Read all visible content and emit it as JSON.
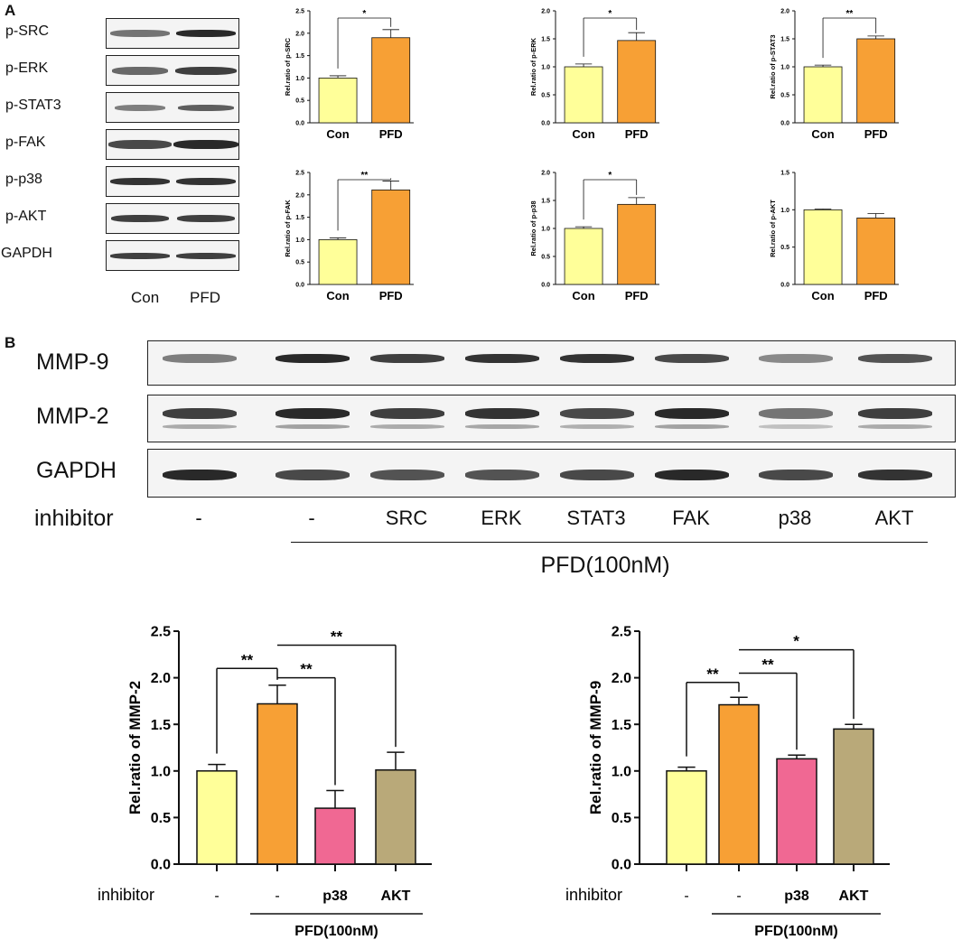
{
  "panel_labels": {
    "a": "A",
    "b": "B"
  },
  "panelA": {
    "blot_rows": [
      "p-SRC",
      "p-ERK",
      "p-STAT3",
      "p-FAK",
      "p-p38",
      "p-AKT",
      "GAPDH"
    ],
    "lanes": [
      "Con",
      "PFD"
    ]
  },
  "panelB": {
    "blot_rows": [
      "MMP-9",
      "MMP-2",
      "GAPDH"
    ],
    "inhibitor_label": "inhibitor",
    "lanes": [
      "-",
      "-",
      "SRC",
      "ERK",
      "STAT3",
      "FAK",
      "p38",
      "AKT"
    ],
    "treatment_label": "PFD(100nM)"
  },
  "colors": {
    "con": "#ffff99",
    "pfd": "#f7a035",
    "p38": "#f06893",
    "akt": "#b9a979"
  },
  "chart_data": [
    {
      "type": "bar",
      "id": "p-SRC",
      "categories": [
        "Con",
        "PFD"
      ],
      "values": [
        1.0,
        1.9
      ],
      "errors": [
        0.05,
        0.18
      ],
      "ylabel": "Rel.ratio of p-SRC",
      "ylim": [
        0,
        2.5
      ],
      "yticks": [
        "0.0",
        "0.5",
        "1.0",
        "1.5",
        "2.0",
        "2.5"
      ],
      "sig": [
        {
          "from": 0,
          "to": 1,
          "label": "*"
        }
      ]
    },
    {
      "type": "bar",
      "id": "p-ERK",
      "categories": [
        "Con",
        "PFD"
      ],
      "values": [
        1.0,
        1.47
      ],
      "errors": [
        0.05,
        0.14
      ],
      "ylabel": "Rel.ratio of p-ERK",
      "ylim": [
        0,
        2.0
      ],
      "yticks": [
        "0.0",
        "0.5",
        "1.0",
        "1.5",
        "2.0"
      ],
      "sig": [
        {
          "from": 0,
          "to": 1,
          "label": "*"
        }
      ]
    },
    {
      "type": "bar",
      "id": "p-STAT3",
      "categories": [
        "Con",
        "PFD"
      ],
      "values": [
        1.0,
        1.5
      ],
      "errors": [
        0.03,
        0.05
      ],
      "ylabel": "Rel.ratio of p-STAT3",
      "ylim": [
        0,
        2.0
      ],
      "yticks": [
        "0.0",
        "0.5",
        "1.0",
        "1.5",
        "2.0"
      ],
      "sig": [
        {
          "from": 0,
          "to": 1,
          "label": "**"
        }
      ]
    },
    {
      "type": "bar",
      "id": "p-FAK",
      "categories": [
        "Con",
        "PFD"
      ],
      "values": [
        1.0,
        2.11
      ],
      "errors": [
        0.04,
        0.2
      ],
      "ylabel": "Rel.ratio of p-FAK",
      "ylim": [
        0,
        2.5
      ],
      "yticks": [
        "0.0",
        "0.5",
        "1.0",
        "1.5",
        "2.0",
        "2.5"
      ],
      "sig": [
        {
          "from": 0,
          "to": 1,
          "label": "**"
        }
      ]
    },
    {
      "type": "bar",
      "id": "p-p38",
      "categories": [
        "Con",
        "PFD"
      ],
      "values": [
        1.0,
        1.43
      ],
      "errors": [
        0.03,
        0.12
      ],
      "ylabel": "Rel.ratio of p-p38",
      "ylim": [
        0,
        2.0
      ],
      "yticks": [
        "0.0",
        "0.5",
        "1.0",
        "1.5",
        "2.0"
      ],
      "sig": [
        {
          "from": 0,
          "to": 1,
          "label": "*"
        }
      ]
    },
    {
      "type": "bar",
      "id": "p-AKT",
      "categories": [
        "Con",
        "PFD"
      ],
      "values": [
        1.0,
        0.89
      ],
      "errors": [
        0.01,
        0.06
      ],
      "ylabel": "Rel.ratio of p-AKT",
      "ylim": [
        0,
        1.5
      ],
      "yticks": [
        "0.0",
        "0.5",
        "1.0",
        "1.5"
      ],
      "sig": []
    },
    {
      "type": "bar",
      "id": "MMP-2",
      "categories": [
        "-",
        "-",
        "p38",
        "AKT"
      ],
      "values": [
        1.0,
        1.72,
        0.6,
        1.01
      ],
      "errors": [
        0.07,
        0.2,
        0.19,
        0.19
      ],
      "ylabel": "Rel.ratio of MMP-2",
      "ylim": [
        0,
        2.5
      ],
      "yticks": [
        "0.0",
        "0.5",
        "1.0",
        "1.5",
        "2.0",
        "2.5"
      ],
      "xprefix": "inhibitor",
      "group_label": "PFD(100nM)",
      "sig": [
        {
          "from": 0,
          "to": 1,
          "label": "**"
        },
        {
          "from": 1,
          "to": 2,
          "label": "**"
        },
        {
          "from": 1,
          "to": 3,
          "label": "**"
        }
      ]
    },
    {
      "type": "bar",
      "id": "MMP-9",
      "categories": [
        "-",
        "-",
        "p38",
        "AKT"
      ],
      "values": [
        1.0,
        1.71,
        1.13,
        1.45
      ],
      "errors": [
        0.04,
        0.08,
        0.04,
        0.05
      ],
      "ylabel": "Rel.ratio of MMP-9",
      "ylim": [
        0,
        2.5
      ],
      "yticks": [
        "0.0",
        "0.5",
        "1.0",
        "1.5",
        "2.0",
        "2.5"
      ],
      "xprefix": "inhibitor",
      "group_label": "PFD(100nM)",
      "sig": [
        {
          "from": 0,
          "to": 1,
          "label": "**"
        },
        {
          "from": 1,
          "to": 2,
          "label": "**"
        },
        {
          "from": 1,
          "to": 3,
          "label": "*"
        }
      ]
    }
  ]
}
